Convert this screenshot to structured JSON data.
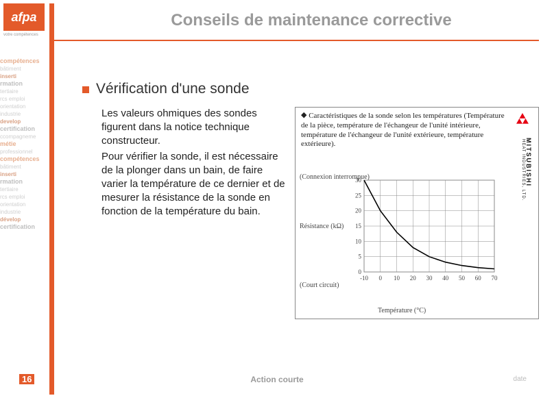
{
  "logo": {
    "text": "afpa",
    "tagline": "votre compétences"
  },
  "title": {
    "text": "Conseils de maintenance corrective",
    "fontsize": 24,
    "color": "#9a9a9a"
  },
  "accent_color": "#e35a2a",
  "divider_color": "#e35a2a",
  "section": {
    "bullet_color": "#e35a2a",
    "heading": "Vérification d'une sonde",
    "heading_fontsize": 21,
    "paragraphs": [
      "Les valeurs ohmiques des sondes figurent dans la notice technique constructeur.",
      "Pour vérifier la sonde, il est nécessaire de la plonger dans un bain, de faire varier la température de ce dernier et de mesurer la résistance de la sonde en fonction de la température du bain."
    ],
    "body_fontsize": 15
  },
  "wordcloud": [
    {
      "t": "compétences",
      "c": "wc1"
    },
    {
      "t": "bâtiment",
      "c": "wc2"
    },
    {
      "t": "inserti",
      "c": "wc3"
    },
    {
      "t": "rmation",
      "c": "wc4"
    },
    {
      "t": "tertiaire",
      "c": "wc2"
    },
    {
      "t": "rcs emploi",
      "c": "wc2"
    },
    {
      "t": "orientation",
      "c": "wc2"
    },
    {
      "t": "industrie",
      "c": "wc2"
    },
    {
      "t": "develop",
      "c": "wc3"
    },
    {
      "t": "certification",
      "c": "wc4"
    },
    {
      "t": "ccompagneme",
      "c": "wc2"
    },
    {
      "t": "métie",
      "c": "wc1"
    },
    {
      "t": "professionnel",
      "c": "wc2"
    },
    {
      "t": "compétences",
      "c": "wc1"
    },
    {
      "t": "bâtiment",
      "c": "wc2"
    },
    {
      "t": "inserti",
      "c": "wc3"
    },
    {
      "t": "rmation",
      "c": "wc4"
    },
    {
      "t": "tertiaire",
      "c": "wc2"
    },
    {
      "t": "rcs emploi",
      "c": "wc2"
    },
    {
      "t": "orientation",
      "c": "wc2"
    },
    {
      "t": "industrie",
      "c": "wc2"
    },
    {
      "t": "dévelop",
      "c": "wc3"
    },
    {
      "t": "certification",
      "c": "wc4"
    }
  ],
  "chart": {
    "type": "line",
    "caption_prefix": "◆",
    "caption": "Caractéristiques de la sonde selon les températures (Température de la pièce, température de l'échangeur de l'unité intérieure, température de l'échangeur de l'unité extérieure, température extérieure).",
    "brand": "MITSUBISHI",
    "brand_sub": "HEAT INDUSTRIES, LTD.",
    "brand_logo_color": "#e60012",
    "xlabel": "Température (°C)",
    "ylabel": "Résistance (kΩ)",
    "annot_top": "(Connexion interrompue)",
    "annot_bottom": "(Court circuit)",
    "xlim": [
      -10,
      70
    ],
    "ylim": [
      0,
      30
    ],
    "xtick_step": 10,
    "ytick_step": 5,
    "x_ticks": [
      -10,
      0,
      10,
      20,
      30,
      40,
      50,
      60,
      70
    ],
    "y_ticks": [
      0,
      5,
      10,
      15,
      20,
      25,
      30
    ],
    "curve_points": [
      {
        "x": -10,
        "y": 30
      },
      {
        "x": 0,
        "y": 20
      },
      {
        "x": 10,
        "y": 13
      },
      {
        "x": 20,
        "y": 8
      },
      {
        "x": 30,
        "y": 5
      },
      {
        "x": 40,
        "y": 3.2
      },
      {
        "x": 50,
        "y": 2.1
      },
      {
        "x": 60,
        "y": 1.4
      },
      {
        "x": 70,
        "y": 1.0
      }
    ],
    "line_color": "#000000",
    "line_width": 1.6,
    "grid_color": "#888888",
    "background_color": "#ffffff",
    "tick_fontsize": 9,
    "label_fontsize": 10
  },
  "footer": {
    "page_number": "16",
    "center": "Action courte",
    "date": "date"
  }
}
